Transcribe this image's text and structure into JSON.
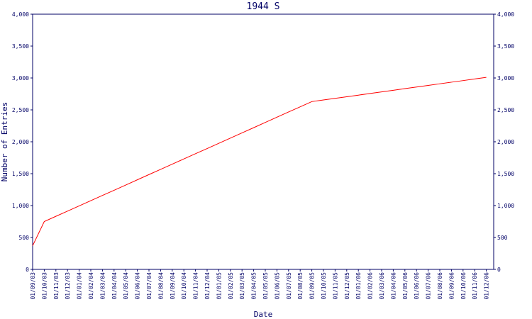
{
  "chart_data": {
    "type": "line",
    "title": "1944 S",
    "x_label": "Date",
    "y_label": "Number of Entries",
    "categories": [
      "01/09/03",
      "01/10/03",
      "01/11/03",
      "01/12/03",
      "01/01/04",
      "01/02/04",
      "01/03/04",
      "01/04/04",
      "01/05/04",
      "01/06/04",
      "01/07/04",
      "01/08/04",
      "01/09/04",
      "01/10/04",
      "01/11/04",
      "01/12/04",
      "01/01/05",
      "01/02/05",
      "01/03/05",
      "01/04/05",
      "01/05/05",
      "01/06/05",
      "01/07/05",
      "01/08/05",
      "01/09/05",
      "01/10/05",
      "01/11/05",
      "01/12/05",
      "01/01/06",
      "01/02/06",
      "01/03/06",
      "01/04/06",
      "01/05/06",
      "01/06/06",
      "01/07/06",
      "01/08/06",
      "01/09/06",
      "01/10/06",
      "01/11/06",
      "01/12/06"
    ],
    "values": [
      370,
      750,
      832,
      913,
      995,
      1077,
      1159,
      1240,
      1322,
      1404,
      1486,
      1567,
      1649,
      1731,
      1813,
      1894,
      1976,
      2058,
      2140,
      2221,
      2303,
      2385,
      2467,
      2548,
      2630,
      2655,
      2681,
      2706,
      2731,
      2757,
      2782,
      2807,
      2833,
      2858,
      2883,
      2909,
      2934,
      2959,
      2985,
      3010
    ],
    "color": "#ff0000",
    "ylim": [
      0,
      4000
    ],
    "yticks": [
      0,
      500,
      {
        "value": 1000,
        "label": "1,000"
      },
      {
        "value": 1500,
        "label": "1,500"
      },
      {
        "value": 2000,
        "label": "2,000"
      },
      {
        "value": 2500,
        "label": "2,500"
      },
      {
        "value": 3000,
        "label": "3,000"
      },
      {
        "value": 3500,
        "label": "3,500"
      },
      {
        "value": 4000,
        "label": "4,000"
      }
    ]
  }
}
